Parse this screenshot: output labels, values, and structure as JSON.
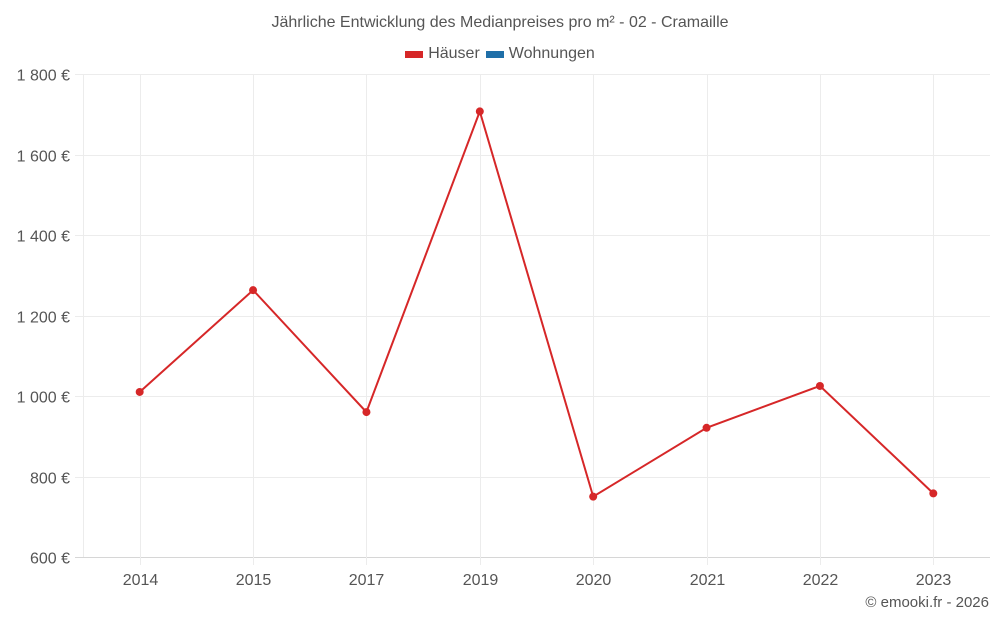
{
  "chart_data": {
    "type": "line",
    "title": "Jährliche Entwicklung des Medianpreises pro m² - 02 - Cramaille",
    "categories": [
      "2014",
      "2015",
      "2017",
      "2019",
      "2020",
      "2021",
      "2022",
      "2023"
    ],
    "series": [
      {
        "name": "Häuser",
        "color": "#d62728",
        "values": [
          1010,
          1263,
          960,
          1707,
          750,
          921,
          1025,
          758
        ]
      },
      {
        "name": "Wohnungen",
        "color": "#1f6fa8",
        "values": []
      }
    ],
    "xlabel": "",
    "ylabel": "",
    "ylim": [
      600,
      1800
    ],
    "yticks": [
      600,
      800,
      1000,
      1200,
      1400,
      1600,
      1800
    ],
    "ytick_labels": [
      "600 €",
      "800 €",
      "1 000 €",
      "1 200 €",
      "1 400 €",
      "1 600 €",
      "1 800 €"
    ],
    "grid": true,
    "legend_position": "top"
  },
  "header": {
    "title": "Jährliche Entwicklung des Medianpreises pro m² - 02 - Cramaille"
  },
  "legend": {
    "items": [
      {
        "label": "Häuser",
        "color": "#d62728"
      },
      {
        "label": "Wohnungen",
        "color": "#1f6fa8"
      }
    ]
  },
  "footer": {
    "credit": "© emooki.fr - 2026"
  }
}
